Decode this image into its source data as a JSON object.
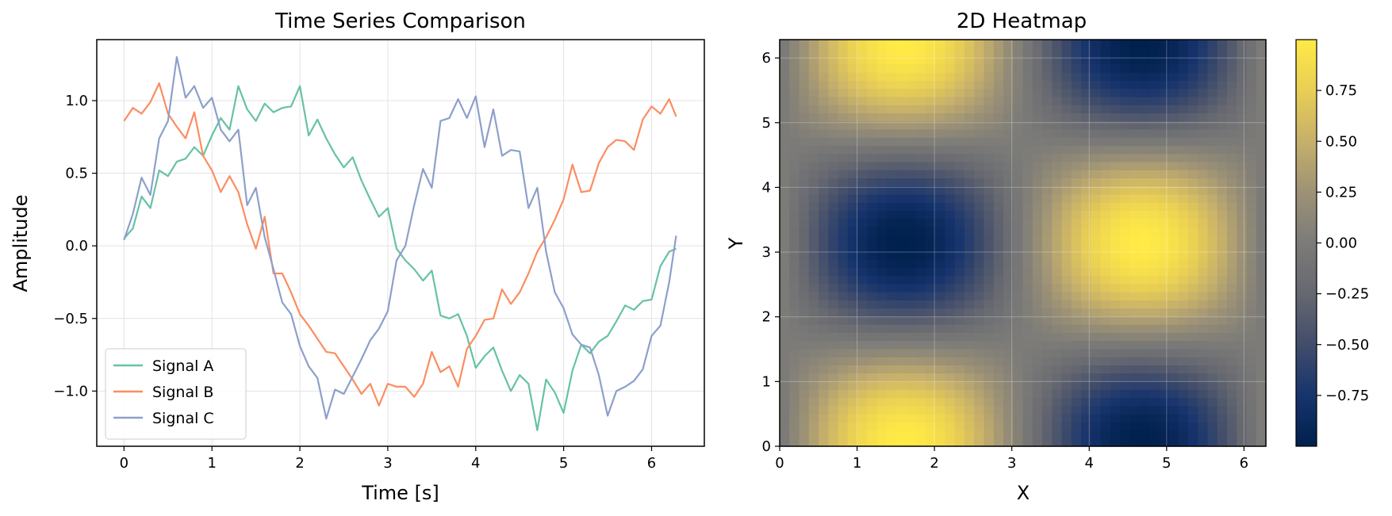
{
  "chart_data": [
    {
      "type": "line",
      "title": "Time Series Comparison",
      "xlabel": "Time [s]",
      "ylabel": "Amplitude",
      "xlim": [
        -0.31,
        6.6
      ],
      "ylim": [
        -1.38,
        1.42
      ],
      "xticks": [
        0,
        1,
        2,
        3,
        4,
        5,
        6
      ],
      "xtick_labels": [
        "0",
        "1",
        "2",
        "3",
        "4",
        "5",
        "6"
      ],
      "yticks": [
        -1.0,
        -0.5,
        0.0,
        0.5,
        1.0
      ],
      "ytick_labels": [
        "−1.0",
        "−0.5",
        "0.0",
        "0.5",
        "1.0"
      ],
      "grid": true,
      "legend_position": "lower-left",
      "x": [
        0.0,
        0.1,
        0.2,
        0.3,
        0.4,
        0.5,
        0.6,
        0.7,
        0.8,
        0.9,
        1.0,
        1.1,
        1.2,
        1.3,
        1.4,
        1.5,
        1.6,
        1.7,
        1.8,
        1.9,
        2.0,
        2.1,
        2.2,
        2.3,
        2.4,
        2.5,
        2.6,
        2.7,
        2.8,
        2.9,
        3.0,
        3.1,
        3.2,
        3.3,
        3.4,
        3.5,
        3.6,
        3.7,
        3.8,
        3.9,
        4.0,
        4.1,
        4.2,
        4.3,
        4.4,
        4.5,
        4.6,
        4.7,
        4.8,
        4.9,
        5.0,
        5.1,
        5.2,
        5.3,
        5.4,
        5.5,
        5.6,
        5.7,
        5.8,
        5.9,
        6.0,
        6.1,
        6.2,
        6.28
      ],
      "series": [
        {
          "name": "Signal A",
          "color": "#66c2a5",
          "values": [
            0.05,
            0.12,
            0.34,
            0.26,
            0.52,
            0.48,
            0.58,
            0.6,
            0.68,
            0.62,
            0.76,
            0.88,
            0.8,
            1.1,
            0.94,
            0.86,
            0.98,
            0.92,
            0.95,
            0.96,
            1.1,
            0.76,
            0.87,
            0.74,
            0.63,
            0.54,
            0.61,
            0.45,
            0.32,
            0.2,
            0.26,
            -0.02,
            -0.1,
            -0.16,
            -0.24,
            -0.17,
            -0.48,
            -0.5,
            -0.47,
            -0.62,
            -0.84,
            -0.76,
            -0.7,
            -0.86,
            -1.0,
            -0.89,
            -0.95,
            -1.27,
            -0.92,
            -1.01,
            -1.15,
            -0.86,
            -0.68,
            -0.74,
            -0.66,
            -0.62,
            -0.52,
            -0.41,
            -0.44,
            -0.38,
            -0.37,
            -0.14,
            -0.04,
            -0.02
          ]
        },
        {
          "name": "Signal B",
          "color": "#fc8d62",
          "values": [
            0.86,
            0.95,
            0.91,
            0.99,
            1.12,
            0.91,
            0.82,
            0.74,
            0.92,
            0.62,
            0.52,
            0.37,
            0.48,
            0.37,
            0.15,
            -0.02,
            0.2,
            -0.19,
            -0.19,
            -0.32,
            -0.47,
            -0.55,
            -0.64,
            -0.73,
            -0.74,
            -0.83,
            -0.92,
            -1.02,
            -0.95,
            -1.1,
            -0.95,
            -0.97,
            -0.97,
            -1.04,
            -0.95,
            -0.73,
            -0.87,
            -0.83,
            -0.97,
            -0.71,
            -0.62,
            -0.51,
            -0.5,
            -0.3,
            -0.4,
            -0.32,
            -0.19,
            -0.04,
            0.06,
            0.18,
            0.32,
            0.56,
            0.37,
            0.38,
            0.57,
            0.68,
            0.73,
            0.72,
            0.66,
            0.87,
            0.96,
            0.91,
            1.01,
            0.89
          ]
        },
        {
          "name": "Signal C",
          "color": "#8da0cb",
          "values": [
            0.04,
            0.22,
            0.47,
            0.35,
            0.74,
            0.86,
            1.3,
            1.02,
            1.1,
            0.95,
            1.02,
            0.8,
            0.72,
            0.8,
            0.28,
            0.4,
            0.06,
            -0.16,
            -0.39,
            -0.47,
            -0.69,
            -0.83,
            -0.91,
            -1.19,
            -0.99,
            -1.02,
            -0.9,
            -0.78,
            -0.65,
            -0.57,
            -0.45,
            -0.1,
            0.0,
            0.28,
            0.53,
            0.4,
            0.86,
            0.88,
            1.01,
            0.88,
            1.03,
            0.68,
            0.94,
            0.62,
            0.66,
            0.65,
            0.26,
            0.4,
            -0.04,
            -0.32,
            -0.43,
            -0.61,
            -0.68,
            -0.7,
            -0.89,
            -1.17,
            -1.0,
            -0.97,
            -0.93,
            -0.85,
            -0.62,
            -0.55,
            -0.25,
            0.07
          ]
        }
      ]
    },
    {
      "type": "heatmap",
      "title": "2D Heatmap",
      "xlabel": "X",
      "ylabel": "Y",
      "xlim": [
        0,
        6.283
      ],
      "ylim": [
        0,
        6.283
      ],
      "xticks": [
        0,
        1,
        2,
        3,
        4,
        5,
        6
      ],
      "xtick_labels": [
        "0",
        "1",
        "2",
        "3",
        "4",
        "5",
        "6"
      ],
      "yticks": [
        0,
        1,
        2,
        3,
        4,
        5,
        6
      ],
      "ytick_labels": [
        "0",
        "1",
        "2",
        "3",
        "4",
        "5",
        "6"
      ],
      "function": "sin(x) * cos(y)",
      "grid_size": 50,
      "colormap": "cividis",
      "value_range": [
        -1.0,
        1.0
      ],
      "grid": true,
      "colorbar": {
        "ticks": [
          -0.75,
          -0.5,
          -0.25,
          0.0,
          0.25,
          0.5,
          0.75
        ],
        "tick_labels": [
          "−0.75",
          "−0.50",
          "−0.25",
          "0.00",
          "0.25",
          "0.50",
          "0.75"
        ]
      }
    }
  ]
}
